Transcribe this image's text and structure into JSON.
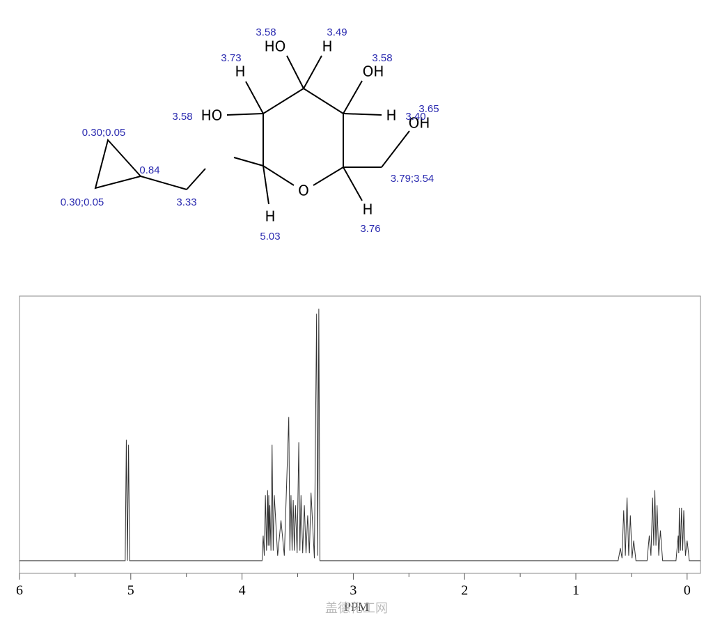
{
  "molecule": {
    "atom_labels": [
      "HO",
      "H",
      "H",
      "OH",
      "HO",
      "H",
      "OH",
      "O",
      "H",
      "H"
    ],
    "shift_labels": [
      "3.58",
      "3.49",
      "3.73",
      "3.58",
      "3.58",
      "3.40",
      "3.65",
      "0.30;0.05",
      "0.30;0.05",
      "0.84",
      "3.33",
      "3.79;3.54",
      "5.03",
      "3.76"
    ]
  },
  "chart_data": {
    "type": "line",
    "xlabel": "PPM",
    "watermark": "盖德化工网",
    "color": "#333333",
    "xlim": [
      6,
      -0.12
    ],
    "ylim": [
      -5,
      105
    ],
    "xticks": [
      6,
      5,
      4,
      3,
      2,
      1,
      0
    ],
    "x": [
      6,
      5.05,
      5.04,
      5.03,
      5.02,
      5.01,
      3.82,
      3.81,
      3.8,
      3.79,
      3.78,
      3.77,
      3.765,
      3.76,
      3.755,
      3.75,
      3.74,
      3.73,
      3.72,
      3.71,
      3.68,
      3.65,
      3.62,
      3.58,
      3.57,
      3.56,
      3.55,
      3.54,
      3.53,
      3.52,
      3.505,
      3.49,
      3.48,
      3.47,
      3.455,
      3.44,
      3.425,
      3.41,
      3.395,
      3.38,
      3.35,
      3.33,
      3.32,
      3.31,
      3.3,
      0.62,
      0.6,
      0.585,
      0.57,
      0.555,
      0.54,
      0.525,
      0.51,
      0.495,
      0.48,
      0.46,
      0.36,
      0.34,
      0.325,
      0.31,
      0.3,
      0.29,
      0.28,
      0.27,
      0.255,
      0.24,
      0.22,
      0.1,
      0.08,
      0.075,
      0.07,
      0.06,
      0.05,
      0.04,
      0.03,
      0.015,
      0.0,
      -0.02,
      -0.12
    ],
    "values": [
      0,
      0,
      48,
      0,
      46,
      0,
      0,
      10,
      2,
      26,
      4,
      28,
      6,
      26,
      6,
      22,
      4,
      46,
      4,
      26,
      2,
      16,
      2,
      57,
      4,
      26,
      4,
      24,
      4,
      22,
      3,
      47,
      4,
      26,
      3,
      22,
      3,
      18,
      3,
      27,
      1,
      98,
      2,
      100,
      0,
      0,
      5,
      1,
      20,
      2,
      25,
      2,
      18,
      1,
      8,
      0,
      0,
      10,
      2,
      25,
      6,
      28,
      6,
      22,
      2,
      12,
      0,
      0,
      10,
      3,
      21,
      4,
      21,
      4,
      20,
      2,
      8,
      0,
      0
    ]
  }
}
